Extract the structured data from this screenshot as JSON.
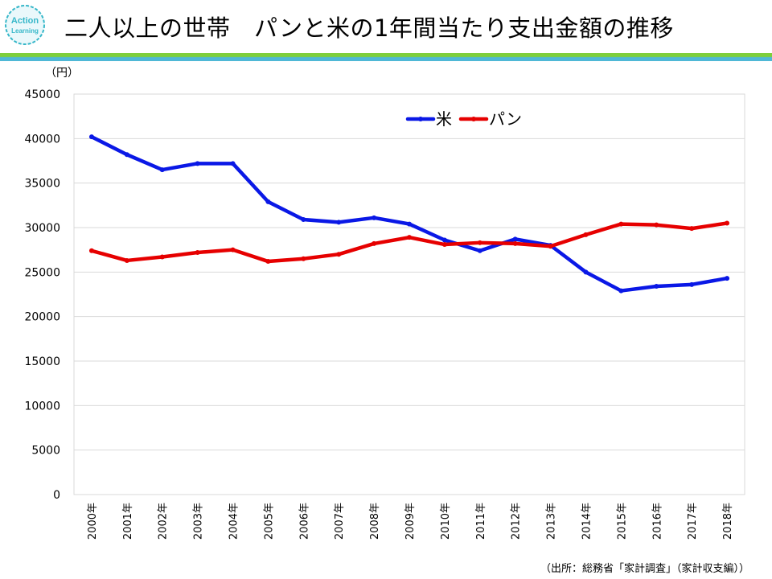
{
  "title": "二人以上の世帯　パンと米の1年間当たり支出金額の推移",
  "logo": {
    "line1": "Action",
    "line2": "Learning",
    "color": "#36b7c9"
  },
  "source": "（出所：総務省「家計調査」（家計収支編））",
  "colors": {
    "rice": "#0a18e6",
    "bread": "#e60000",
    "grid": "#d9d9d9"
  },
  "chart_data": {
    "type": "line",
    "title": "",
    "ylabel": "（円）",
    "xlabel": "",
    "ylim": [
      0,
      45000
    ],
    "yticks": [
      0,
      5000,
      10000,
      15000,
      20000,
      25000,
      30000,
      35000,
      40000,
      45000
    ],
    "grid": true,
    "legend_position": "top-center",
    "categories": [
      "2000年",
      "2001年",
      "2002年",
      "2003年",
      "2004年",
      "2005年",
      "2006年",
      "2007年",
      "2008年",
      "2009年",
      "2010年",
      "2011年",
      "2012年",
      "2013年",
      "2014年",
      "2015年",
      "2016年",
      "2017年",
      "2018年"
    ],
    "series": [
      {
        "name": "米",
        "color": "#0a18e6",
        "values": [
          40200,
          38200,
          36500,
          37200,
          37200,
          32900,
          30900,
          30600,
          31100,
          30400,
          28600,
          27400,
          28700,
          28000,
          25000,
          22900,
          23400,
          23600,
          24300
        ]
      },
      {
        "name": "パン",
        "color": "#e60000",
        "values": [
          27400,
          26300,
          26700,
          27200,
          27500,
          26200,
          26500,
          27000,
          28200,
          28900,
          28100,
          28300,
          28200,
          27900,
          29200,
          30400,
          30300,
          29900,
          30500
        ]
      }
    ]
  }
}
